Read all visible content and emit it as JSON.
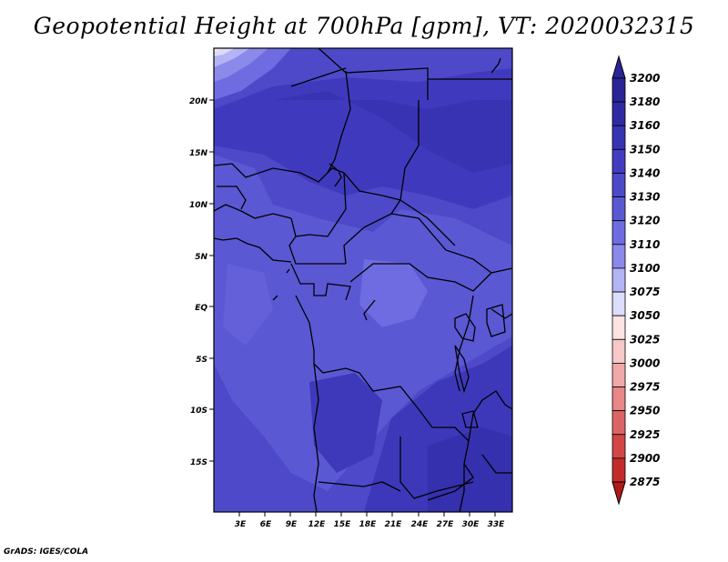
{
  "title": "Geopotential Height at 700hPa [gpm], VT: 2020032315",
  "credit": "GrADS: IGES/COLA",
  "map": {
    "lat_labels": [
      "20N",
      "15N",
      "10N",
      "5N",
      "EQ",
      "5S",
      "10S",
      "15S"
    ],
    "lon_labels": [
      "3E",
      "6E",
      "9E",
      "12E",
      "15E",
      "18E",
      "21E",
      "24E",
      "27E",
      "30E",
      "33E"
    ]
  },
  "colorbar": {
    "levels": [
      "3200",
      "3180",
      "3160",
      "3150",
      "3140",
      "3130",
      "3120",
      "3110",
      "3100",
      "3075",
      "3050",
      "3025",
      "3000",
      "2975",
      "2950",
      "2925",
      "2900",
      "2875"
    ],
    "colors": [
      "#2a2497",
      "#2f2aa3",
      "#3833b2",
      "#423dbf",
      "#4d49c9",
      "#5b58d4",
      "#6e6ce0",
      "#8b89ea",
      "#b4b3f3",
      "#dcdcfb",
      "#fbe3e3",
      "#f7c8c8",
      "#f0a9a9",
      "#e78787",
      "#dd6464",
      "#d24646",
      "#c42b2b",
      "#b01919"
    ]
  }
}
